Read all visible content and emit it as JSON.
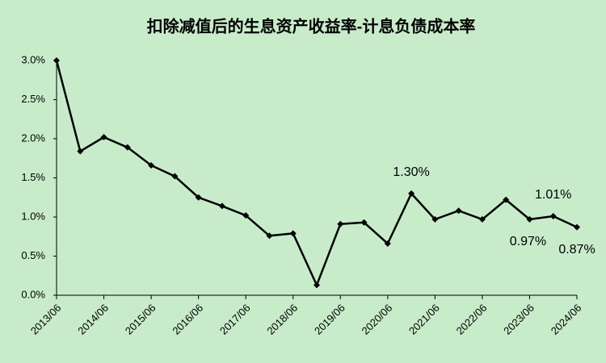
{
  "chart_data": {
    "type": "line",
    "title": "扣除减值后的生息资产收益率-计息负债成本率",
    "categories": [
      "2013/06",
      null,
      "2014/06",
      null,
      "2015/06",
      null,
      "2016/06",
      null,
      "2017/06",
      null,
      "2018/06",
      null,
      "2019/06",
      null,
      "2020/06",
      null,
      "2021/06",
      null,
      "2022/06",
      null,
      "2023/06",
      null,
      "2024/06"
    ],
    "series": [
      {
        "color": "#000000",
        "values": [
          3.0,
          1.84,
          2.02,
          1.89,
          1.66,
          1.52,
          1.25,
          1.14,
          1.02,
          0.76,
          0.79,
          0.13,
          0.91,
          0.93,
          0.66,
          1.3,
          0.97,
          1.08,
          0.97,
          1.22,
          0.97,
          1.01,
          0.87
        ],
        "value_labels": [
          null,
          null,
          null,
          null,
          null,
          null,
          null,
          null,
          null,
          null,
          null,
          null,
          null,
          null,
          null,
          "1.30%",
          null,
          null,
          null,
          null,
          "0.97%",
          "1.01%",
          "0.87%"
        ]
      }
    ],
    "ylim": [
      0,
      3.0
    ],
    "yticks": [
      {
        "value": 0,
        "label": "0.0%"
      },
      {
        "value": 0.5,
        "label": "0.5%"
      },
      {
        "value": 1.0,
        "label": "1.0%"
      },
      {
        "value": 1.5,
        "label": "1.5%"
      },
      {
        "value": 2.0,
        "label": "2.0%"
      },
      {
        "value": 2.5,
        "label": "2.5%"
      },
      {
        "value": 3.0,
        "label": "3.0%"
      }
    ],
    "grid": false
  }
}
